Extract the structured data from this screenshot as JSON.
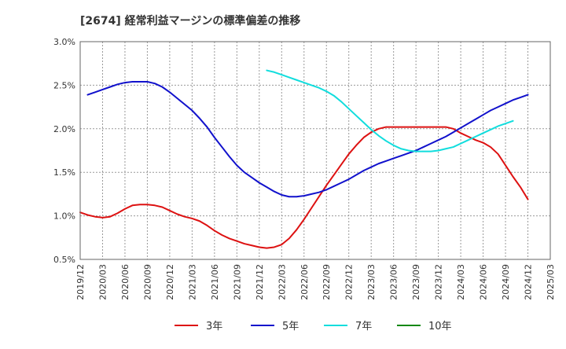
{
  "chart_data": {
    "type": "line",
    "title": "[2674]  経常利益マージンの標準偏差の推移",
    "xlabel": "",
    "ylabel": "",
    "ylim": [
      0.5,
      3.0
    ],
    "yticks": [
      "0.5%",
      "1.0%",
      "1.5%",
      "2.0%",
      "2.5%",
      "3.0%"
    ],
    "ytick_values": [
      0.5,
      1.0,
      1.5,
      2.0,
      2.5,
      3.0
    ],
    "xticks": [
      "2019/12",
      "2020/03",
      "2020/06",
      "2020/09",
      "2020/12",
      "2021/03",
      "2021/06",
      "2021/09",
      "2021/12",
      "2022/03",
      "2022/06",
      "2022/09",
      "2022/12",
      "2023/03",
      "2023/06",
      "2023/09",
      "2023/12",
      "2024/03",
      "2024/06",
      "2024/09",
      "2024/12",
      "2025/03"
    ],
    "grid": true,
    "legend_position": "bottom",
    "series": [
      {
        "name": "3年",
        "color": "#dd1111",
        "points": [
          [
            "2019/12",
            1.04
          ],
          [
            "2020/01",
            1.01
          ],
          [
            "2020/02",
            0.99
          ],
          [
            "2020/03",
            0.98
          ],
          [
            "2020/04",
            0.99
          ],
          [
            "2020/05",
            1.03
          ],
          [
            "2020/06",
            1.08
          ],
          [
            "2020/07",
            1.12
          ],
          [
            "2020/08",
            1.13
          ],
          [
            "2020/09",
            1.13
          ],
          [
            "2020/10",
            1.12
          ],
          [
            "2020/11",
            1.1
          ],
          [
            "2020/12",
            1.06
          ],
          [
            "2021/01",
            1.02
          ],
          [
            "2021/02",
            0.99
          ],
          [
            "2021/03",
            0.97
          ],
          [
            "2021/04",
            0.94
          ],
          [
            "2021/05",
            0.89
          ],
          [
            "2021/06",
            0.83
          ],
          [
            "2021/07",
            0.78
          ],
          [
            "2021/08",
            0.74
          ],
          [
            "2021/09",
            0.71
          ],
          [
            "2021/10",
            0.68
          ],
          [
            "2021/11",
            0.66
          ],
          [
            "2021/12",
            0.64
          ],
          [
            "2022/01",
            0.63
          ],
          [
            "2022/02",
            0.64
          ],
          [
            "2022/03",
            0.67
          ],
          [
            "2022/04",
            0.74
          ],
          [
            "2022/05",
            0.84
          ],
          [
            "2022/06",
            0.96
          ],
          [
            "2022/07",
            1.09
          ],
          [
            "2022/08",
            1.22
          ],
          [
            "2022/09",
            1.35
          ],
          [
            "2022/10",
            1.47
          ],
          [
            "2022/11",
            1.59
          ],
          [
            "2022/12",
            1.71
          ],
          [
            "2023/01",
            1.81
          ],
          [
            "2023/02",
            1.9
          ],
          [
            "2023/03",
            1.96
          ],
          [
            "2023/04",
            2.0
          ],
          [
            "2023/05",
            2.02
          ],
          [
            "2023/06",
            2.02
          ],
          [
            "2023/07",
            2.02
          ],
          [
            "2023/08",
            2.02
          ],
          [
            "2023/09",
            2.02
          ],
          [
            "2023/10",
            2.02
          ],
          [
            "2023/11",
            2.02
          ],
          [
            "2023/12",
            2.02
          ],
          [
            "2024/01",
            2.02
          ],
          [
            "2024/02",
            2.0
          ],
          [
            "2024/03",
            1.95
          ],
          [
            "2024/04",
            1.91
          ],
          [
            "2024/05",
            1.87
          ],
          [
            "2024/06",
            1.84
          ],
          [
            "2024/07",
            1.79
          ],
          [
            "2024/08",
            1.71
          ],
          [
            "2024/09",
            1.58
          ],
          [
            "2024/10",
            1.45
          ],
          [
            "2024/11",
            1.33
          ],
          [
            "2024/12",
            1.19
          ]
        ]
      },
      {
        "name": "5年",
        "color": "#1111cc",
        "points": [
          [
            "2020/01",
            2.39
          ],
          [
            "2020/02",
            2.42
          ],
          [
            "2020/03",
            2.45
          ],
          [
            "2020/04",
            2.48
          ],
          [
            "2020/05",
            2.51
          ],
          [
            "2020/06",
            2.53
          ],
          [
            "2020/07",
            2.54
          ],
          [
            "2020/08",
            2.54
          ],
          [
            "2020/09",
            2.54
          ],
          [
            "2020/10",
            2.52
          ],
          [
            "2020/11",
            2.48
          ],
          [
            "2020/12",
            2.42
          ],
          [
            "2021/01",
            2.35
          ],
          [
            "2021/02",
            2.28
          ],
          [
            "2021/03",
            2.21
          ],
          [
            "2021/04",
            2.12
          ],
          [
            "2021/05",
            2.02
          ],
          [
            "2021/06",
            1.9
          ],
          [
            "2021/07",
            1.79
          ],
          [
            "2021/08",
            1.68
          ],
          [
            "2021/09",
            1.58
          ],
          [
            "2021/10",
            1.5
          ],
          [
            "2021/11",
            1.44
          ],
          [
            "2021/12",
            1.38
          ],
          [
            "2022/01",
            1.33
          ],
          [
            "2022/02",
            1.28
          ],
          [
            "2022/03",
            1.24
          ],
          [
            "2022/04",
            1.22
          ],
          [
            "2022/05",
            1.22
          ],
          [
            "2022/06",
            1.23
          ],
          [
            "2022/07",
            1.25
          ],
          [
            "2022/08",
            1.27
          ],
          [
            "2022/09",
            1.3
          ],
          [
            "2022/10",
            1.34
          ],
          [
            "2022/11",
            1.38
          ],
          [
            "2022/12",
            1.42
          ],
          [
            "2023/01",
            1.47
          ],
          [
            "2023/02",
            1.52
          ],
          [
            "2023/03",
            1.56
          ],
          [
            "2023/04",
            1.6
          ],
          [
            "2023/05",
            1.63
          ],
          [
            "2023/06",
            1.66
          ],
          [
            "2023/07",
            1.69
          ],
          [
            "2023/08",
            1.72
          ],
          [
            "2023/09",
            1.75
          ],
          [
            "2023/10",
            1.79
          ],
          [
            "2023/11",
            1.83
          ],
          [
            "2023/12",
            1.87
          ],
          [
            "2024/01",
            1.91
          ],
          [
            "2024/02",
            1.96
          ],
          [
            "2024/03",
            2.01
          ],
          [
            "2024/04",
            2.06
          ],
          [
            "2024/05",
            2.11
          ],
          [
            "2024/06",
            2.16
          ],
          [
            "2024/07",
            2.21
          ],
          [
            "2024/08",
            2.25
          ],
          [
            "2024/09",
            2.29
          ],
          [
            "2024/10",
            2.33
          ],
          [
            "2024/11",
            2.36
          ],
          [
            "2024/12",
            2.39
          ]
        ]
      },
      {
        "name": "7年",
        "color": "#11dddd",
        "points": [
          [
            "2022/01",
            2.67
          ],
          [
            "2022/02",
            2.65
          ],
          [
            "2022/03",
            2.62
          ],
          [
            "2022/04",
            2.59
          ],
          [
            "2022/05",
            2.56
          ],
          [
            "2022/06",
            2.53
          ],
          [
            "2022/07",
            2.5
          ],
          [
            "2022/08",
            2.47
          ],
          [
            "2022/09",
            2.43
          ],
          [
            "2022/10",
            2.38
          ],
          [
            "2022/11",
            2.31
          ],
          [
            "2022/12",
            2.23
          ],
          [
            "2023/01",
            2.15
          ],
          [
            "2023/02",
            2.07
          ],
          [
            "2023/03",
            1.99
          ],
          [
            "2023/04",
            1.92
          ],
          [
            "2023/05",
            1.86
          ],
          [
            "2023/06",
            1.81
          ],
          [
            "2023/07",
            1.77
          ],
          [
            "2023/08",
            1.75
          ],
          [
            "2023/09",
            1.74
          ],
          [
            "2023/10",
            1.74
          ],
          [
            "2023/11",
            1.74
          ],
          [
            "2023/12",
            1.75
          ],
          [
            "2024/01",
            1.77
          ],
          [
            "2024/02",
            1.79
          ],
          [
            "2024/03",
            1.83
          ],
          [
            "2024/04",
            1.87
          ],
          [
            "2024/05",
            1.91
          ],
          [
            "2024/06",
            1.95
          ],
          [
            "2024/07",
            1.99
          ],
          [
            "2024/08",
            2.03
          ],
          [
            "2024/09",
            2.06
          ],
          [
            "2024/10",
            2.09
          ]
        ]
      },
      {
        "name": "10年",
        "color": "#118811",
        "points": []
      }
    ]
  }
}
